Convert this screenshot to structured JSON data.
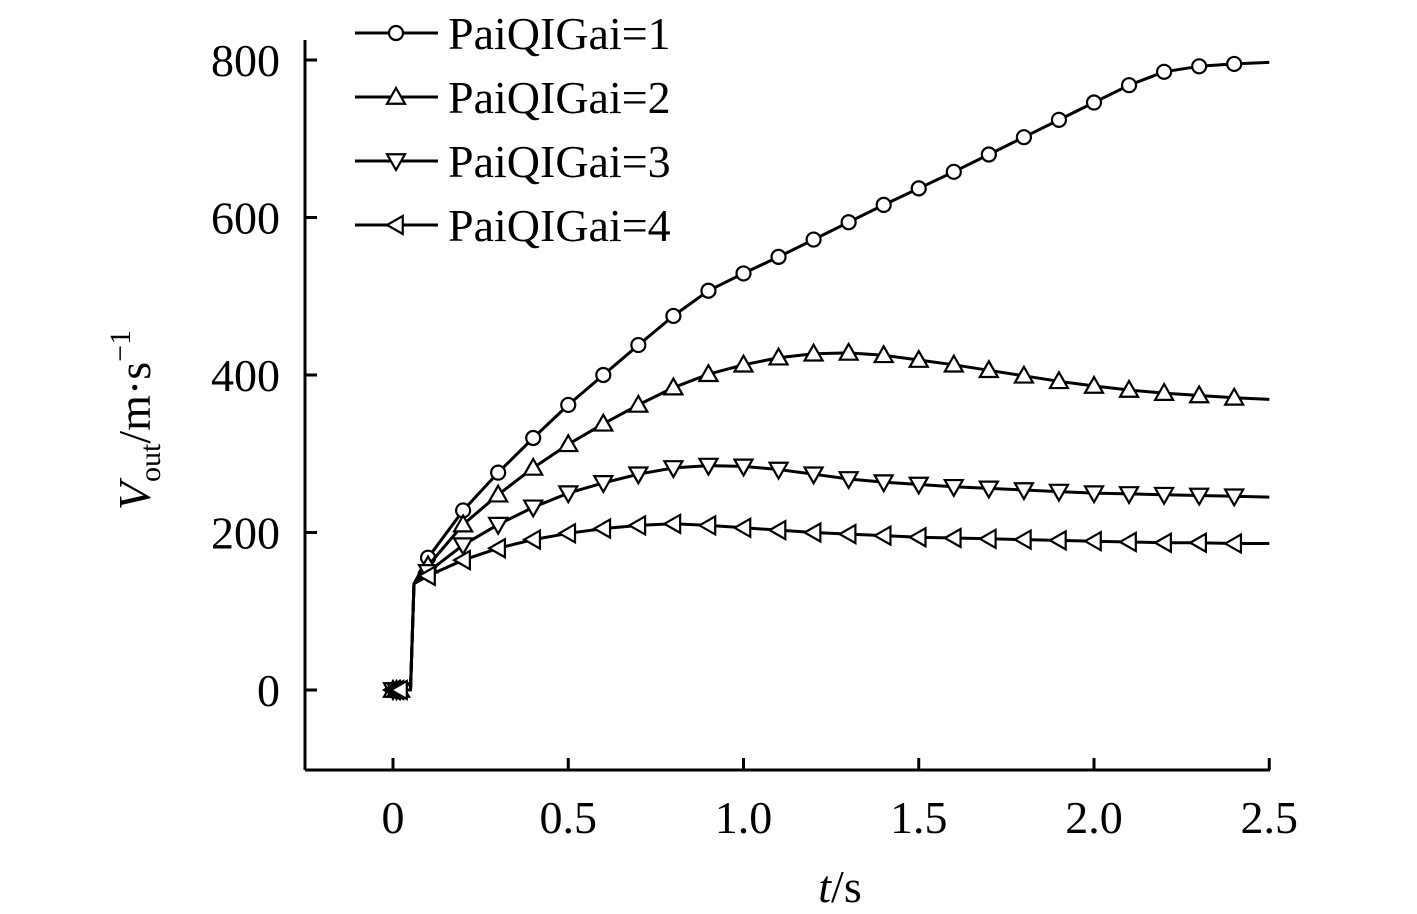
{
  "chart_data": {
    "type": "line",
    "title": "",
    "xlabel": {
      "var": "t",
      "unit": "/s"
    },
    "ylabel": {
      "var": "V",
      "sub": "out",
      "unit": "/m·s",
      "exp": "−1"
    },
    "xlim": [
      -0.25,
      2.5
    ],
    "ylim": [
      -100,
      800
    ],
    "xticks": [
      0,
      0.5,
      1.0,
      1.5,
      2.0,
      2.5
    ],
    "xtick_labels": [
      "0",
      "0.5",
      "1.0",
      "1.5",
      "2.0",
      "2.5"
    ],
    "yticks": [
      0,
      200,
      400,
      600,
      800
    ],
    "ytick_labels": [
      "0",
      "200",
      "400",
      "600",
      "800"
    ],
    "grid": false,
    "legend_position": "top-left",
    "series": [
      {
        "name": "PaiQIGai=1",
        "marker": "circle",
        "x": [
          0,
          0.01,
          0.02,
          0.03,
          0.04,
          0.05,
          0.06,
          0.1,
          0.2,
          0.3,
          0.4,
          0.5,
          0.6,
          0.7,
          0.8,
          0.9,
          1.0,
          1.1,
          1.2,
          1.3,
          1.4,
          1.5,
          1.6,
          1.7,
          1.8,
          1.9,
          2.0,
          2.1,
          2.2,
          2.3,
          2.4,
          2.5
        ],
        "values": [
          0,
          0,
          0,
          0,
          0,
          0,
          135,
          168,
          228,
          276,
          320,
          362,
          400,
          438,
          475,
          507,
          529,
          550,
          572,
          594,
          616,
          637,
          658,
          680,
          702,
          724,
          746,
          768,
          785,
          792,
          795,
          797
        ],
        "markers_x": [
          0,
          0.01,
          0.02,
          0.1,
          0.2,
          0.3,
          0.4,
          0.5,
          0.6,
          0.7,
          0.8,
          0.9,
          1.0,
          1.1,
          1.2,
          1.3,
          1.4,
          1.5,
          1.6,
          1.7,
          1.8,
          1.9,
          2.0,
          2.1,
          2.2,
          2.3,
          2.4
        ]
      },
      {
        "name": "PaiQIGai=2",
        "marker": "triangle-up",
        "x": [
          0,
          0.01,
          0.02,
          0.03,
          0.04,
          0.05,
          0.06,
          0.1,
          0.2,
          0.3,
          0.4,
          0.5,
          0.6,
          0.7,
          0.8,
          0.9,
          1.0,
          1.1,
          1.2,
          1.3,
          1.4,
          1.5,
          1.6,
          1.7,
          1.8,
          1.9,
          2.0,
          2.1,
          2.2,
          2.3,
          2.4,
          2.5
        ],
        "values": [
          0,
          0,
          0,
          0,
          0,
          0,
          135,
          158,
          210,
          248,
          282,
          312,
          338,
          362,
          384,
          401,
          413,
          422,
          427,
          428,
          425,
          419,
          413,
          406,
          399,
          392,
          386,
          381,
          377,
          374,
          371,
          369
        ],
        "markers_x": [
          0,
          0.01,
          0.02,
          0.1,
          0.2,
          0.3,
          0.4,
          0.5,
          0.6,
          0.7,
          0.8,
          0.9,
          1.0,
          1.1,
          1.2,
          1.3,
          1.4,
          1.5,
          1.6,
          1.7,
          1.8,
          1.9,
          2.0,
          2.1,
          2.2,
          2.3,
          2.4
        ]
      },
      {
        "name": "PaiQIGai=3",
        "marker": "triangle-down",
        "x": [
          0,
          0.01,
          0.02,
          0.03,
          0.04,
          0.05,
          0.06,
          0.1,
          0.2,
          0.3,
          0.4,
          0.5,
          0.6,
          0.7,
          0.8,
          0.9,
          1.0,
          1.1,
          1.2,
          1.3,
          1.4,
          1.5,
          1.6,
          1.7,
          1.8,
          1.9,
          2.0,
          2.1,
          2.2,
          2.3,
          2.4,
          2.5
        ],
        "values": [
          0,
          0,
          0,
          0,
          0,
          0,
          135,
          150,
          184,
          210,
          232,
          250,
          263,
          274,
          282,
          285,
          284,
          280,
          274,
          268,
          264,
          261,
          258,
          256,
          254,
          252,
          250,
          249,
          248,
          247,
          246,
          245
        ],
        "markers_x": [
          0,
          0.01,
          0.02,
          0.1,
          0.2,
          0.3,
          0.4,
          0.5,
          0.6,
          0.7,
          0.8,
          0.9,
          1.0,
          1.1,
          1.2,
          1.3,
          1.4,
          1.5,
          1.6,
          1.7,
          1.8,
          1.9,
          2.0,
          2.1,
          2.2,
          2.3,
          2.4
        ]
      },
      {
        "name": "PaiQIGai=4",
        "marker": "triangle-left",
        "x": [
          0,
          0.01,
          0.02,
          0.03,
          0.04,
          0.05,
          0.06,
          0.1,
          0.2,
          0.3,
          0.4,
          0.5,
          0.6,
          0.7,
          0.8,
          0.9,
          1.0,
          1.1,
          1.2,
          1.3,
          1.4,
          1.5,
          1.6,
          1.7,
          1.8,
          1.9,
          2.0,
          2.1,
          2.2,
          2.3,
          2.4,
          2.5
        ],
        "values": [
          0,
          0,
          0,
          0,
          0,
          0,
          135,
          145,
          165,
          180,
          191,
          199,
          205,
          209,
          211,
          209,
          206,
          203,
          200,
          198,
          196,
          194,
          193,
          192,
          191,
          190,
          189,
          188,
          187,
          187,
          186,
          186
        ],
        "markers_x": [
          0,
          0.01,
          0.02,
          0.1,
          0.2,
          0.3,
          0.4,
          0.5,
          0.6,
          0.7,
          0.8,
          0.9,
          1.0,
          1.1,
          1.2,
          1.3,
          1.4,
          1.5,
          1.6,
          1.7,
          1.8,
          1.9,
          2.0,
          2.1,
          2.2,
          2.3,
          2.4
        ]
      }
    ]
  }
}
